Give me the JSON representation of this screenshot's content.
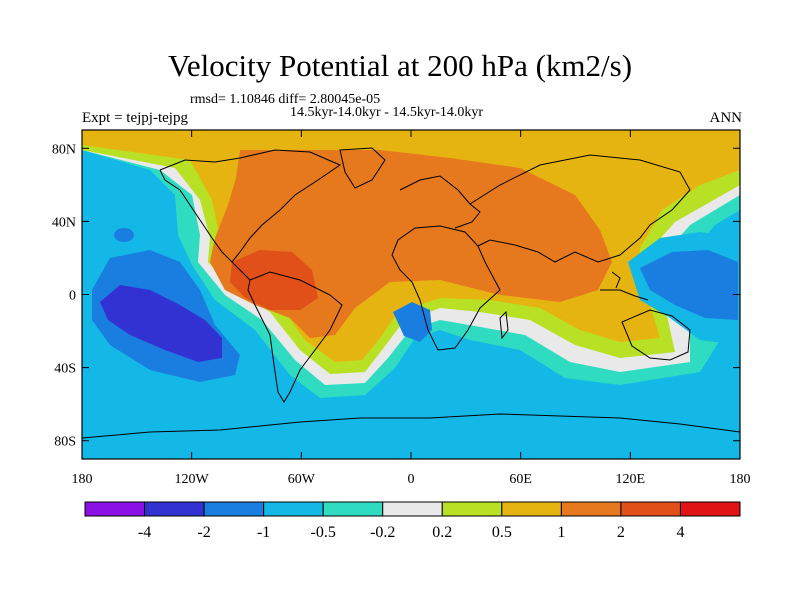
{
  "chart_data": {
    "type": "heatmap",
    "title": "Velocity Potential at 200 hPa (km2/s)",
    "stats_line": "rmsd= 1.10846 diff= 2.80045e-05",
    "period_line": "14.5kyr-14.0kyr - 14.5kyr-14.0kyr",
    "experiment": "Expt = tejpj-tejpg",
    "season": "ANN",
    "x_range": [
      -180,
      180
    ],
    "y_range": [
      -90,
      90
    ],
    "x_ticks": [
      {
        "value": -180,
        "label": "180"
      },
      {
        "value": -120,
        "label": "120W"
      },
      {
        "value": -60,
        "label": "60W"
      },
      {
        "value": 0,
        "label": "0"
      },
      {
        "value": 60,
        "label": "60E"
      },
      {
        "value": 120,
        "label": "120E"
      },
      {
        "value": 180,
        "label": "180"
      }
    ],
    "y_ticks": [
      {
        "value": 80,
        "label": "80N"
      },
      {
        "value": 40,
        "label": "40N"
      },
      {
        "value": 0,
        "label": "0"
      },
      {
        "value": -40,
        "label": "40S"
      },
      {
        "value": -80,
        "label": "80S"
      }
    ],
    "colorbar": {
      "levels": [
        "-4",
        "-2",
        "-1",
        "-0.5",
        "-0.2",
        "0.2",
        "0.5",
        "1",
        "2",
        "4"
      ],
      "colors": [
        "#8a10e6",
        "#3232d2",
        "#1a7ee0",
        "#13b8e6",
        "#2fdcc2",
        "#e9e9e9",
        "#b8e024",
        "#e6b410",
        "#e6781e",
        "#e2501a",
        "#e01414"
      ]
    },
    "regions": [
      {
        "name": "background",
        "level": "-1 to -0.5"
      },
      {
        "name": "atlantic-africa-eurasia-positive",
        "level": "0.5 to 1"
      },
      {
        "name": "americas-atlantic-core",
        "level": "1 to 2"
      },
      {
        "name": "caribbean-amazon-max",
        "level": "2 to 4"
      },
      {
        "name": "east-pacific-minimum",
        "level": "-4 to -2"
      },
      {
        "name": "west-pacific-minimum",
        "level": "-2 to -1"
      },
      {
        "name": "south-atlantic-negative",
        "level": "-2 to -1"
      }
    ]
  }
}
